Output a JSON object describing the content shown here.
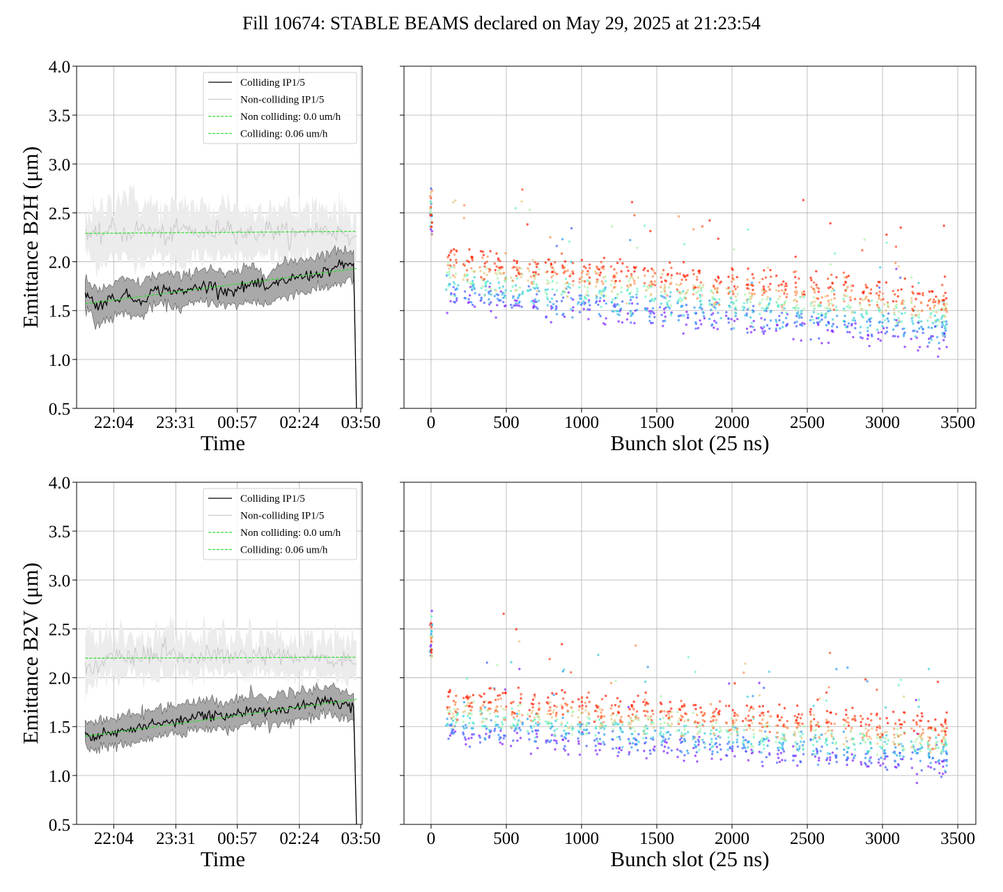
{
  "figure": {
    "title": "Fill 10674: STABLE BEAMS declared on May 29, 2025 at 21:23:54"
  },
  "chart_data": [
    {
      "type": "line",
      "panel": "top-left",
      "xlabel": "Time",
      "ylabel": "Emittance B2H (μm)",
      "x_ticks": [
        "22:04",
        "23:31",
        "00:57",
        "02:24",
        "03:50"
      ],
      "ylim": [
        0.5,
        4.0
      ],
      "y_ticks": [
        "0.5",
        "1.0",
        "1.5",
        "2.0",
        "2.5",
        "3.0",
        "3.5",
        "4.0"
      ],
      "grid": true,
      "legend_position": "top-right",
      "legend": [
        "Colliding IP1/5",
        "Non-colliding IP1/5",
        "Non colliding: 0.0 um/h",
        "Colliding: 0.06 um/h"
      ],
      "x_time": [
        "21:24",
        "21:40",
        "22:00",
        "22:20",
        "22:40",
        "23:00",
        "23:20",
        "23:40",
        "00:00",
        "00:20",
        "00:40",
        "01:00",
        "01:20",
        "01:40",
        "02:00",
        "02:20",
        "02:40",
        "03:00",
        "03:20",
        "03:40",
        "03:44"
      ],
      "series": [
        {
          "name": "Colliding IP1/5",
          "color": "#000000",
          "values": [
            1.68,
            1.55,
            1.62,
            1.66,
            1.6,
            1.7,
            1.72,
            1.68,
            1.74,
            1.76,
            1.7,
            1.72,
            1.78,
            1.72,
            1.8,
            1.84,
            1.86,
            1.9,
            1.95,
            1.98,
            0.5
          ],
          "band_low": [
            1.54,
            1.35,
            1.42,
            1.48,
            1.42,
            1.55,
            1.56,
            1.52,
            1.58,
            1.6,
            1.54,
            1.56,
            1.6,
            1.56,
            1.64,
            1.68,
            1.7,
            1.73,
            1.78,
            1.82,
            0.5
          ],
          "band_high": [
            1.82,
            1.7,
            1.76,
            1.82,
            1.78,
            1.86,
            1.88,
            1.84,
            1.92,
            1.94,
            1.86,
            1.9,
            1.96,
            1.88,
            1.98,
            2.02,
            2.04,
            2.08,
            2.12,
            2.12,
            0.5
          ]
        },
        {
          "name": "Non-colliding IP1/5",
          "color": "#c8c8c8",
          "values": [
            2.3,
            2.25,
            2.35,
            2.28,
            2.34,
            2.3,
            2.26,
            2.34,
            2.3,
            2.28,
            2.38,
            2.3,
            2.28,
            2.34,
            2.3,
            2.26,
            2.34,
            2.32,
            2.3,
            2.26,
            2.26
          ],
          "band_low": [
            2.1,
            1.95,
            2.05,
            2.02,
            2.0,
            2.06,
            2.02,
            1.98,
            2.04,
            2.02,
            2.1,
            2.02,
            2.0,
            2.06,
            2.02,
            2.0,
            2.04,
            2.04,
            2.02,
            2.0,
            2.0
          ],
          "band_high": [
            2.54,
            2.48,
            2.62,
            2.7,
            2.6,
            2.58,
            2.5,
            2.62,
            2.56,
            2.52,
            2.62,
            2.54,
            2.5,
            2.6,
            2.56,
            2.5,
            2.58,
            2.56,
            2.54,
            2.5,
            2.5
          ]
        },
        {
          "name": "Non colliding: 0.0 um/h",
          "color": "#33dd33",
          "dashed": true,
          "values": [
            2.29,
            2.31
          ]
        },
        {
          "name": "Colliding: 0.06 um/h",
          "color": "#33dd33",
          "dashed": true,
          "values": [
            1.57,
            1.93
          ]
        }
      ]
    },
    {
      "type": "scatter",
      "panel": "top-right",
      "xlabel": "Bunch slot (25 ns)",
      "xlim": [
        -180,
        3620
      ],
      "x_ticks": [
        "0",
        "500",
        "1000",
        "1500",
        "2000",
        "2500",
        "3000",
        "3500"
      ],
      "ylim": [
        0.5,
        4.0
      ],
      "grid": true,
      "trains": [
        0,
        100,
        213,
        320,
        420,
        530,
        640,
        760,
        865,
        975,
        1085,
        1195,
        1300,
        1410,
        1520,
        1630,
        1740,
        1850,
        1960,
        2070,
        2180,
        2290,
        2405,
        2520,
        2620,
        2740,
        2850,
        2960,
        3070,
        3190,
        3300,
        3390
      ],
      "profile_center_top": 1.95,
      "profile_center_bottom": 1.55,
      "profile_spread_low": 0.35,
      "profile_spread_high": 0.1,
      "colormap": [
        "#7f1fff",
        "#2f6fff",
        "#26b8e8",
        "#5cf2c8",
        "#b6f2a0",
        "#ffb070",
        "#ff5a2a",
        "#ff1a00"
      ]
    },
    {
      "type": "line",
      "panel": "bottom-left",
      "xlabel": "Time",
      "ylabel": "Emittance B2V (μm)",
      "x_ticks": [
        "22:04",
        "23:31",
        "00:57",
        "02:24",
        "03:50"
      ],
      "ylim": [
        0.5,
        4.0
      ],
      "y_ticks": [
        "0.5",
        "1.0",
        "1.5",
        "2.0",
        "2.5",
        "3.0",
        "3.5",
        "4.0"
      ],
      "grid": true,
      "legend_position": "top-right",
      "legend": [
        "Colliding IP1/5",
        "Non-colliding IP1/5",
        "Non colliding: 0.0 um/h",
        "Colliding: 0.06 um/h"
      ],
      "x_time": [
        "21:24",
        "21:40",
        "22:00",
        "22:20",
        "22:40",
        "23:00",
        "23:20",
        "23:40",
        "00:00",
        "00:20",
        "00:40",
        "01:00",
        "01:20",
        "01:40",
        "02:00",
        "02:20",
        "02:40",
        "03:00",
        "03:20",
        "03:40",
        "03:44"
      ],
      "series": [
        {
          "name": "Colliding IP1/5",
          "color": "#000000",
          "values": [
            1.42,
            1.4,
            1.44,
            1.46,
            1.48,
            1.52,
            1.56,
            1.58,
            1.6,
            1.62,
            1.6,
            1.64,
            1.66,
            1.64,
            1.68,
            1.7,
            1.74,
            1.78,
            1.74,
            1.7,
            0.5
          ],
          "band_low": [
            1.3,
            1.26,
            1.3,
            1.32,
            1.34,
            1.38,
            1.42,
            1.44,
            1.46,
            1.48,
            1.46,
            1.5,
            1.52,
            1.52,
            1.54,
            1.56,
            1.6,
            1.64,
            1.6,
            1.56,
            0.5
          ],
          "band_high": [
            1.56,
            1.54,
            1.58,
            1.62,
            1.62,
            1.68,
            1.72,
            1.72,
            1.76,
            1.78,
            1.74,
            1.8,
            1.82,
            1.8,
            1.84,
            1.86,
            1.88,
            1.92,
            1.88,
            1.84,
            0.5
          ]
        },
        {
          "name": "Non-colliding IP1/5",
          "color": "#c8c8c8",
          "values": [
            2.1,
            2.14,
            2.18,
            2.2,
            2.22,
            2.2,
            2.26,
            2.22,
            2.18,
            2.24,
            2.22,
            2.2,
            2.24,
            2.22,
            2.2,
            2.18,
            2.22,
            2.2,
            2.18,
            2.14,
            2.14
          ],
          "band_low": [
            1.8,
            1.98,
            2.02,
            2.04,
            2.02,
            2.06,
            2.06,
            2.04,
            2.02,
            2.06,
            2.04,
            2.02,
            2.08,
            2.04,
            2.02,
            2.0,
            2.04,
            2.02,
            2.0,
            1.98,
            1.98
          ],
          "band_high": [
            2.44,
            2.4,
            2.42,
            2.46,
            2.44,
            2.42,
            2.5,
            2.46,
            2.4,
            2.48,
            2.44,
            2.42,
            2.46,
            2.44,
            2.4,
            2.38,
            2.44,
            2.42,
            2.4,
            2.38,
            2.38
          ]
        },
        {
          "name": "Non colliding: 0.0 um/h",
          "color": "#33dd33",
          "dashed": true,
          "values": [
            2.2,
            2.21
          ]
        },
        {
          "name": "Colliding: 0.06 um/h",
          "color": "#33dd33",
          "dashed": true,
          "values": [
            1.4,
            1.78
          ]
        }
      ]
    },
    {
      "type": "scatter",
      "panel": "bottom-right",
      "xlabel": "Bunch slot (25 ns)",
      "xlim": [
        -180,
        3620
      ],
      "x_ticks": [
        "0",
        "500",
        "1000",
        "1500",
        "2000",
        "2500",
        "3000",
        "3500"
      ],
      "ylim": [
        0.5,
        4.0
      ],
      "grid": true,
      "trains": [
        0,
        100,
        213,
        320,
        420,
        530,
        640,
        760,
        865,
        975,
        1085,
        1195,
        1300,
        1410,
        1520,
        1630,
        1740,
        1850,
        1960,
        2070,
        2180,
        2290,
        2405,
        2520,
        2620,
        2740,
        2850,
        2960,
        3070,
        3190,
        3300,
        3390
      ],
      "profile_center_top": 1.7,
      "profile_center_bottom": 1.4,
      "profile_spread_low": 0.3,
      "profile_spread_high": 0.12,
      "colormap": [
        "#7f1fff",
        "#2f6fff",
        "#26b8e8",
        "#5cf2c8",
        "#b6f2a0",
        "#ffb070",
        "#ff5a2a",
        "#ff1a00"
      ]
    }
  ]
}
